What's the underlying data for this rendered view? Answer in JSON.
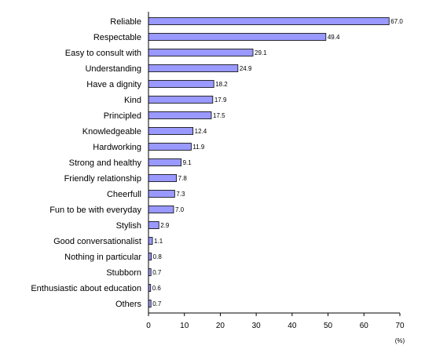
{
  "chart_data": {
    "type": "bar",
    "orientation": "horizontal",
    "categories": [
      "Reliable",
      "Respectable",
      "Easy to consult with",
      "Understanding",
      "Have a dignity",
      "Kind",
      "Principled",
      "Knowledgeable",
      "Hardworking",
      "Strong and healthy",
      "Friendly relationship",
      "Cheerfull",
      "Fun to be with everyday",
      "Stylish",
      "Good conversationalist",
      "Nothing in particular",
      "Stubborn",
      "Enthusiastic about education",
      "Others"
    ],
    "values": [
      67.0,
      49.4,
      29.1,
      24.9,
      18.2,
      17.9,
      17.5,
      12.4,
      11.9,
      9.1,
      7.8,
      7.3,
      7.0,
      2.9,
      1.1,
      0.8,
      0.7,
      0.6,
      0.7
    ],
    "value_labels": [
      "67.0",
      "49.4",
      "29.1",
      "24.9",
      "18.2",
      "17.9",
      "17.5",
      "12.4",
      "11.9",
      "9.1",
      "7.8",
      "7.3",
      "7.0",
      "2.9",
      "1.1",
      "0.8",
      "0.7",
      "0.6",
      "0.7"
    ],
    "title": "",
    "xlabel": "(%)",
    "ylabel": "",
    "xlim": [
      0,
      70
    ],
    "xticks": [
      0,
      10,
      20,
      30,
      40,
      50,
      60,
      70
    ],
    "grid": false,
    "legend": "none",
    "bar_color": "#9999ff",
    "bar_edge_color": "#000000"
  }
}
